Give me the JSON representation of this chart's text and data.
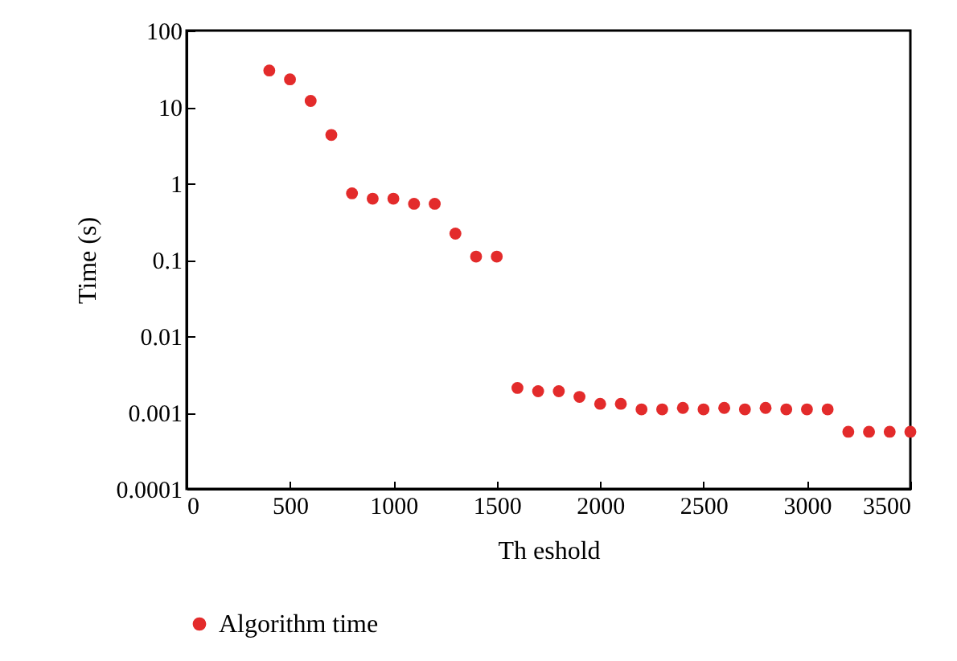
{
  "chart_data": {
    "type": "scatter",
    "xlabel": "Th eshold",
    "ylabel": "Time (s)",
    "x": [
      400,
      500,
      600,
      700,
      800,
      900,
      1000,
      1100,
      1200,
      1300,
      1400,
      1500,
      1600,
      1700,
      1800,
      1900,
      2000,
      2100,
      2200,
      2300,
      2400,
      2500,
      2600,
      2700,
      2800,
      2900,
      3000,
      3100,
      3200,
      3300,
      3400,
      3500
    ],
    "series": [
      {
        "name": "Algorithm time",
        "color": "#e32b2b",
        "values": [
          30,
          23,
          12,
          4.3,
          0.74,
          0.63,
          0.63,
          0.54,
          0.54,
          0.22,
          0.11,
          0.11,
          0.0021,
          0.0019,
          0.0019,
          0.0016,
          0.0013,
          0.0013,
          0.0011,
          0.0011,
          0.00115,
          0.0011,
          0.00115,
          0.0011,
          0.00115,
          0.0011,
          0.0011,
          0.0011,
          0.00056,
          0.00056,
          0.00056,
          0.00056
        ]
      }
    ],
    "log": "y",
    "xlim": [
      0,
      3500
    ],
    "xticks": [
      0,
      500,
      1000,
      1500,
      2000,
      2500,
      3000,
      3500
    ],
    "ylim": [
      0.0001,
      100
    ],
    "yticks": [
      0.0001,
      0.001,
      0.01,
      0.1,
      1,
      10,
      100
    ],
    "marker": "circle",
    "legend": "bottom",
    "grid": false
  }
}
